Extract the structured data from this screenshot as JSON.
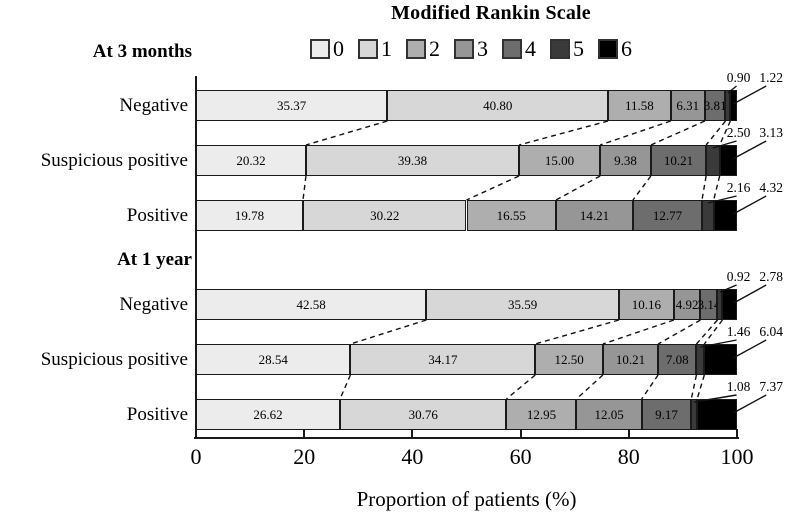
{
  "title": "Modified Rankin Scale",
  "legend": {
    "items": [
      {
        "label": "0",
        "color": "#ececec"
      },
      {
        "label": "1",
        "color": "#d7d7d7"
      },
      {
        "label": "2",
        "color": "#aeaeae"
      },
      {
        "label": "3",
        "color": "#969696"
      },
      {
        "label": "4",
        "color": "#6d6d6d"
      },
      {
        "label": "5",
        "color": "#3a3a3a"
      },
      {
        "label": "6",
        "color": "#000000"
      }
    ]
  },
  "axis": {
    "ticks": [
      "0",
      "20",
      "40",
      "60",
      "80",
      "100"
    ],
    "label": "Proportion of patients (%)"
  },
  "chart_data": {
    "type": "bar",
    "orientation": "horizontal",
    "stacked": true,
    "title": "Modified Rankin Scale",
    "xlabel": "Proportion of patients (%)",
    "xlim": [
      0,
      100
    ],
    "legend_position": "top",
    "grid": false,
    "legend_labels": [
      "0",
      "1",
      "2",
      "3",
      "4",
      "5",
      "6"
    ],
    "colors": [
      "#ececec",
      "#d7d7d7",
      "#aeaeae",
      "#969696",
      "#6d6d6d",
      "#3a3a3a",
      "#000000"
    ],
    "inside_labeled_segments": 5,
    "outside_annotated_segments": [
      5,
      6
    ],
    "groups": [
      {
        "label": "At 3 months",
        "rows": [
          {
            "label": "Negative",
            "values": [
              "35.37",
              "40.80",
              "11.58",
              "6.31",
              "3.81",
              "0.90",
              "1.22"
            ]
          },
          {
            "label": "Suspicious positive",
            "values": [
              "20.32",
              "39.38",
              "15.00",
              "9.38",
              "10.21",
              "2.50",
              "3.13"
            ]
          },
          {
            "label": "Positive",
            "values": [
              "19.78",
              "30.22",
              "16.55",
              "14.21",
              "12.77",
              "2.16",
              "4.32"
            ]
          }
        ]
      },
      {
        "label": "At 1 year",
        "rows": [
          {
            "label": "Negative",
            "values": [
              "42.58",
              "35.59",
              "10.16",
              "4.92",
              "3.14",
              "0.92",
              "2.78"
            ]
          },
          {
            "label": "Suspicious positive",
            "values": [
              "28.54",
              "34.17",
              "12.50",
              "10.21",
              "7.08",
              "1.46",
              "6.04"
            ]
          },
          {
            "label": "Positive",
            "values": [
              "26.62",
              "30.76",
              "12.95",
              "12.05",
              "9.17",
              "1.08",
              "7.37"
            ]
          }
        ]
      }
    ]
  }
}
